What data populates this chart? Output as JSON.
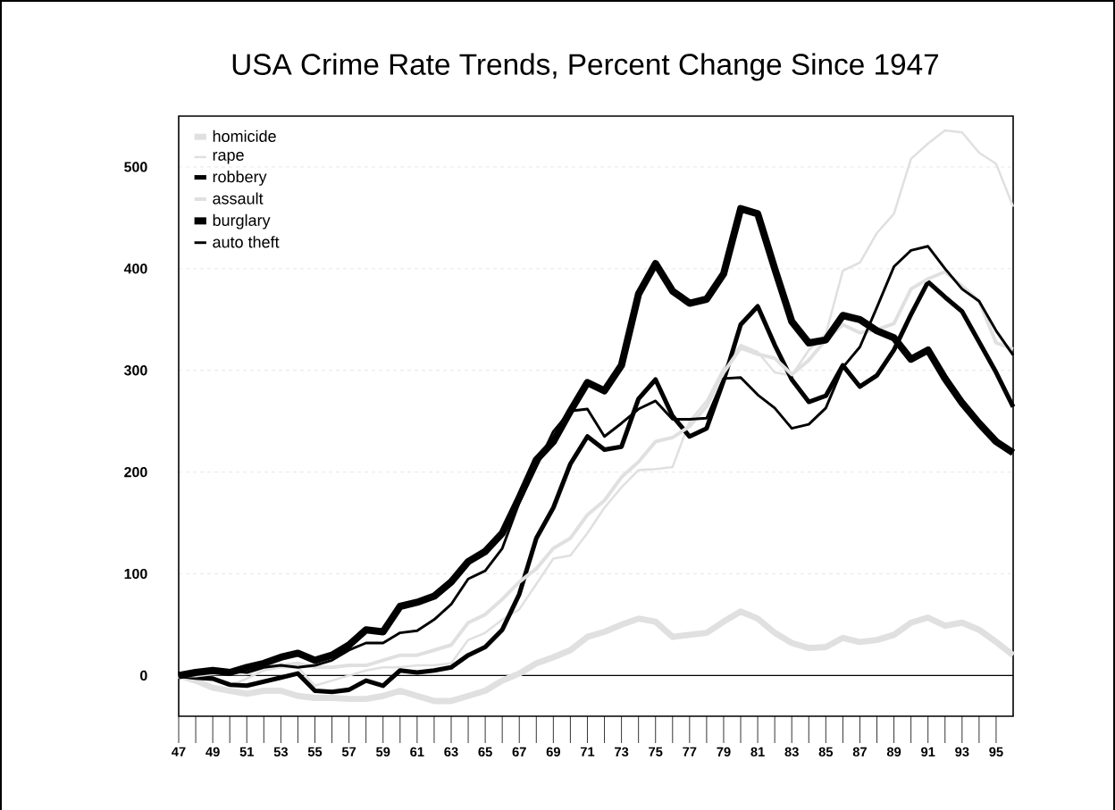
{
  "chart_data": {
    "type": "line",
    "title": "USA Crime  Rate Trends,  Percent Change Since 1947",
    "x": [
      47,
      48,
      49,
      50,
      51,
      52,
      53,
      54,
      55,
      56,
      57,
      58,
      59,
      60,
      61,
      62,
      63,
      64,
      65,
      66,
      67,
      68,
      69,
      70,
      71,
      72,
      73,
      74,
      75,
      76,
      77,
      78,
      79,
      80,
      81,
      82,
      83,
      84,
      85,
      86,
      87,
      88,
      89,
      90,
      91,
      92,
      93,
      94,
      95,
      96
    ],
    "series": [
      {
        "name": "homicide",
        "color": "#e0e0e0",
        "values": [
          0,
          -5,
          -12,
          -15,
          -18,
          -15,
          -15,
          -20,
          -22,
          -22,
          -23,
          -23,
          -20,
          -15,
          -20,
          -25,
          -25,
          -20,
          -15,
          -5,
          2,
          12,
          18,
          25,
          38,
          43,
          50,
          56,
          53,
          38,
          40,
          42,
          53,
          63,
          56,
          42,
          32,
          27,
          28,
          37,
          33,
          35,
          40,
          52,
          57,
          49,
          52,
          45,
          33,
          20
        ]
      },
      {
        "name": "rape",
        "color": "#e0e0e0",
        "values": [
          0,
          0,
          -3,
          -10,
          -3,
          5,
          8,
          8,
          -10,
          -5,
          0,
          5,
          8,
          8,
          10,
          10,
          12,
          35,
          42,
          55,
          65,
          90,
          115,
          118,
          140,
          165,
          185,
          202,
          203,
          205,
          250,
          270,
          302,
          325,
          318,
          298,
          295,
          320,
          336,
          398,
          406,
          435,
          454,
          508,
          523,
          536,
          534,
          514,
          503,
          461
        ]
      },
      {
        "name": "robbery",
        "color": "#000000",
        "values": [
          0,
          -2,
          -3,
          -9,
          -10,
          -6,
          -2,
          2,
          -15,
          -16,
          -14,
          -5,
          -10,
          5,
          3,
          5,
          8,
          20,
          28,
          45,
          80,
          135,
          165,
          208,
          235,
          222,
          225,
          272,
          291,
          255,
          235,
          243,
          290,
          345,
          363,
          325,
          291,
          269,
          275,
          305,
          284,
          295,
          320,
          355,
          387,
          372,
          358,
          328,
          298,
          264
        ]
      },
      {
        "name": "assault",
        "color": "#e0e0e0",
        "values": [
          0,
          0,
          2,
          2,
          2,
          8,
          10,
          12,
          8,
          8,
          10,
          10,
          15,
          20,
          20,
          25,
          30,
          52,
          60,
          75,
          92,
          105,
          125,
          135,
          158,
          172,
          195,
          210,
          230,
          234,
          245,
          265,
          298,
          322,
          316,
          312,
          296,
          310,
          330,
          345,
          337,
          340,
          346,
          380,
          390,
          397,
          383,
          368,
          327,
          321
        ]
      },
      {
        "name": "burglary",
        "color": "#000000",
        "values": [
          0,
          3,
          5,
          3,
          8,
          12,
          18,
          22,
          15,
          20,
          30,
          45,
          43,
          68,
          72,
          78,
          92,
          112,
          122,
          140,
          175,
          212,
          230,
          260,
          288,
          280,
          305,
          375,
          405,
          378,
          366,
          370,
          395,
          459,
          454,
          400,
          348,
          327,
          330,
          354,
          350,
          339,
          332,
          311,
          320,
          292,
          268,
          248,
          230,
          219
        ]
      },
      {
        "name": "auto theft",
        "color": "#000000",
        "values": [
          0,
          5,
          5,
          5,
          3,
          8,
          10,
          8,
          10,
          15,
          25,
          32,
          32,
          42,
          44,
          55,
          70,
          95,
          103,
          125,
          170,
          205,
          240,
          260,
          262,
          235,
          248,
          262,
          270,
          252,
          252,
          253,
          292,
          293,
          276,
          263,
          243,
          247,
          263,
          303,
          323,
          362,
          402,
          418,
          422,
          400,
          380,
          368,
          339,
          315
        ]
      }
    ],
    "xlim": [
      47,
      96
    ],
    "xticks": [
      47,
      49,
      51,
      53,
      55,
      57,
      59,
      61,
      63,
      65,
      67,
      69,
      71,
      73,
      75,
      77,
      79,
      81,
      83,
      85,
      87,
      89,
      91,
      93,
      95
    ],
    "ylim": [
      -40,
      550
    ],
    "yticks": [
      0,
      100,
      200,
      300,
      400,
      500
    ],
    "ref_lines": [
      {
        "axis": "y",
        "value": 0,
        "color": "#000000"
      }
    ],
    "grid": "y",
    "legend": "top left",
    "marker": "none"
  }
}
